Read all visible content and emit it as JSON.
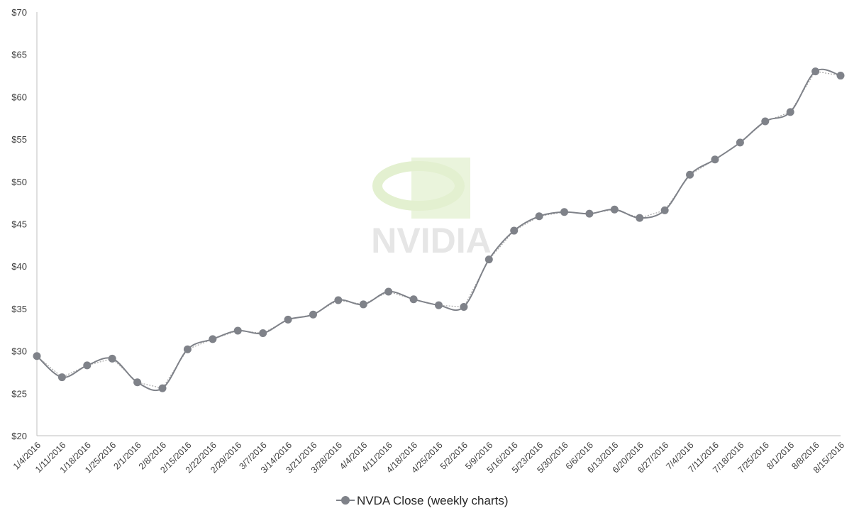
{
  "chart_data": {
    "type": "line",
    "title": "",
    "xlabel": "",
    "ylabel": "",
    "ylim": [
      20,
      70
    ],
    "y_ticks": [
      20,
      25,
      30,
      35,
      40,
      45,
      50,
      55,
      60,
      65,
      70
    ],
    "y_tick_labels": [
      "$20",
      "$25",
      "$30",
      "$35",
      "$40",
      "$45",
      "$50",
      "$55",
      "$60",
      "$65",
      "$70"
    ],
    "categories": [
      "1/4/2016",
      "1/11/2016",
      "1/18/2016",
      "1/25/2016",
      "2/1/2016",
      "2/8/2016",
      "2/15/2016",
      "2/22/2016",
      "2/29/2016",
      "3/7/2016",
      "3/14/2016",
      "3/21/2016",
      "3/28/2016",
      "4/4/2016",
      "4/11/2016",
      "4/18/2016",
      "4/25/2016",
      "5/2/2016",
      "5/9/2016",
      "5/16/2016",
      "5/23/2016",
      "5/30/2016",
      "6/6/2016",
      "6/13/2016",
      "6/20/2016",
      "6/27/2016",
      "7/4/2016",
      "7/11/2016",
      "7/18/2016",
      "7/25/2016",
      "8/1/2016",
      "8/8/2016",
      "8/15/2016"
    ],
    "series": [
      {
        "name": "NVDA Close (weekly charts)",
        "color": "#7f8289",
        "values": [
          29.4,
          26.9,
          28.3,
          29.1,
          26.3,
          25.6,
          30.2,
          31.4,
          32.4,
          32.1,
          33.7,
          34.3,
          36.0,
          35.5,
          37.0,
          36.1,
          35.4,
          35.2,
          40.8,
          44.2,
          45.9,
          46.4,
          46.2,
          46.7,
          45.7,
          46.6,
          50.8,
          52.6,
          54.6,
          57.1,
          58.2,
          63.0,
          62.5
        ]
      }
    ],
    "grid": false,
    "legend_position": "bottom",
    "watermark": "NVIDIA"
  }
}
